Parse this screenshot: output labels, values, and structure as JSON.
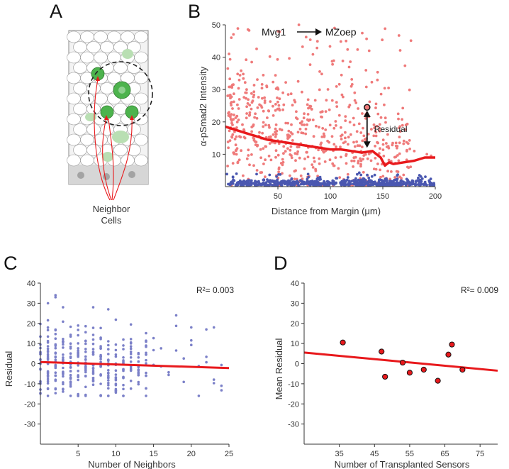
{
  "panels": {
    "a": {
      "letter": "A",
      "label_line1": "Neighbor",
      "label_line2": "Cells"
    },
    "b": {
      "letter": "B"
    },
    "c": {
      "letter": "C"
    },
    "d": {
      "letter": "D"
    }
  },
  "colors": {
    "red": "#e8191c",
    "light_red": "#ef7a7a",
    "blue": "#7b80c8",
    "dark_blue": "#4a57b0",
    "green": "#4db34d",
    "light_green": "#b9dfb3"
  },
  "chart_data": [
    {
      "id": "B",
      "type": "scatter",
      "title_part1": "Mvg1",
      "title_part2": "MZoep",
      "xlabel": "Distance from Margin (μm)",
      "ylabel": "α-pSmad2 Intensity",
      "xlim": [
        0,
        200
      ],
      "ylim": [
        0,
        50
      ],
      "xticks": [
        "50",
        "100",
        "150",
        "200"
      ],
      "yticks": [
        "10",
        "20",
        "30",
        "40",
        "50"
      ],
      "annotation": "Residual",
      "highlight_point": {
        "x": 135,
        "y": 24.5
      },
      "residual_arrow": {
        "x": 135,
        "y_from": 12,
        "y_to": 23.5
      },
      "series": [
        {
          "name": "",
          "kind": "scatter",
          "color": "light_red"
        },
        {
          "name": "",
          "kind": "scatter",
          "color": "dark_blue"
        },
        {
          "name": "",
          "kind": "line",
          "color": "red",
          "x": [
            0,
            10,
            20,
            30,
            40,
            50,
            60,
            70,
            80,
            90,
            100,
            110,
            120,
            130,
            140,
            148,
            152,
            156,
            160,
            170,
            180,
            190,
            200
          ],
          "y": [
            18.5,
            17.5,
            16.5,
            15.5,
            14.5,
            14,
            13.5,
            13,
            12.5,
            12,
            11.5,
            11.5,
            11,
            10.5,
            11,
            9,
            6.5,
            7.5,
            7,
            7.5,
            8,
            9,
            9
          ]
        }
      ]
    },
    {
      "id": "C",
      "type": "scatter",
      "xlabel": "Number of Neighbors",
      "ylabel": "Residual",
      "xlim": [
        0,
        25
      ],
      "ylim": [
        -40,
        40
      ],
      "xticks": [
        "5",
        "10",
        "15",
        "20",
        "25"
      ],
      "yticks": [
        "40",
        "30",
        "20",
        "10",
        "0",
        "-10",
        "-20",
        "-30"
      ],
      "annotation": "R²= 0.003",
      "series": [
        {
          "name": "",
          "kind": "scatter",
          "color": "blue"
        },
        {
          "name": "",
          "kind": "line",
          "color": "red",
          "x": [
            0,
            25
          ],
          "y": [
            0.8,
            -2.2
          ]
        }
      ]
    },
    {
      "id": "D",
      "type": "scatter",
      "xlabel": "Number of Transplanted Sensors",
      "ylabel": "Mean Residual",
      "xlim": [
        25,
        80
      ],
      "ylim": [
        -40,
        40
      ],
      "xticks": [
        "35",
        "45",
        "55",
        "65",
        "75"
      ],
      "yticks": [
        "40",
        "30",
        "20",
        "10",
        "0",
        "-10",
        "-20",
        "-30"
      ],
      "annotation": "R²= 0.009",
      "series": [
        {
          "name": "",
          "kind": "scatter",
          "color": "red",
          "x": [
            36,
            47,
            48,
            53,
            55,
            59,
            63,
            66,
            67,
            70
          ],
          "y": [
            10.5,
            6,
            -6.5,
            0.5,
            -4.5,
            -3,
            -8.5,
            4.5,
            9.5,
            -3
          ]
        },
        {
          "name": "",
          "kind": "line",
          "color": "red",
          "x": [
            25,
            80
          ],
          "y": [
            5.5,
            -3.5
          ]
        }
      ]
    }
  ]
}
